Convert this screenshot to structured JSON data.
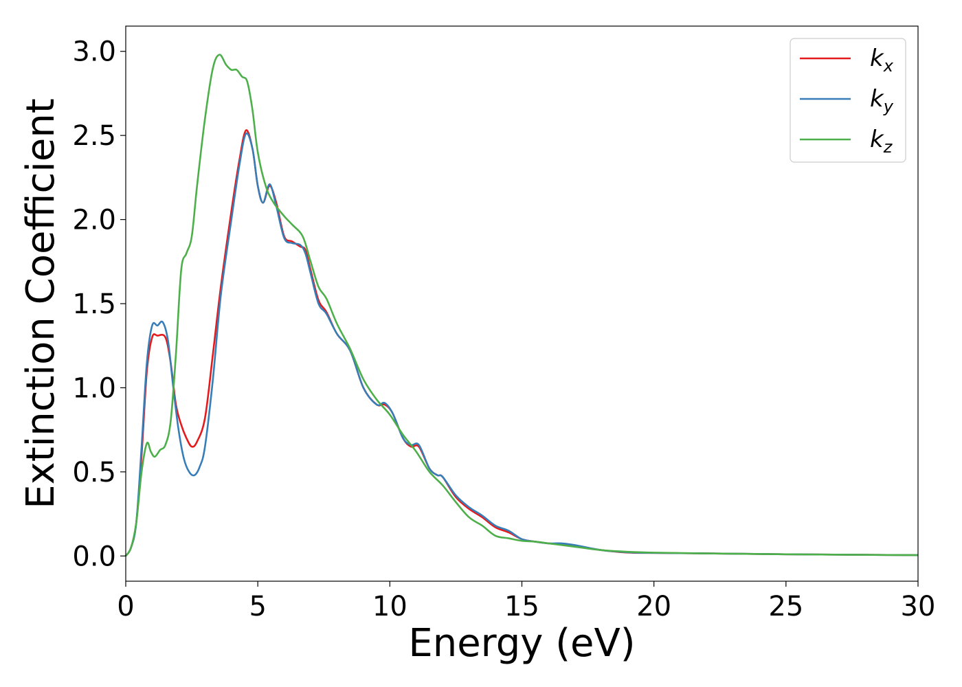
{
  "chart_data": {
    "type": "line",
    "xlabel": "Energy (eV)",
    "ylabel": "Extinction Coefficient",
    "xlim": [
      0,
      30
    ],
    "ylim": [
      -0.15,
      3.15
    ],
    "x_ticks": [
      0,
      5,
      10,
      15,
      20,
      25,
      30
    ],
    "x_tick_labels": [
      "0",
      "5",
      "10",
      "15",
      "20",
      "25",
      "30"
    ],
    "y_ticks": [
      0.0,
      0.5,
      1.0,
      1.5,
      2.0,
      2.5,
      3.0
    ],
    "y_tick_labels": [
      "0.0",
      "0.5",
      "1.0",
      "1.5",
      "2.0",
      "2.5",
      "3.0"
    ],
    "grid": false,
    "legend_position": "top-right",
    "series": [
      {
        "name": "k",
        "subscript": "x",
        "color": "#e41a1c",
        "points": [
          [
            0,
            0
          ],
          [
            0.2,
            0.05
          ],
          [
            0.4,
            0.2
          ],
          [
            0.6,
            0.6
          ],
          [
            0.8,
            1.1
          ],
          [
            1.0,
            1.3
          ],
          [
            1.2,
            1.31
          ],
          [
            1.5,
            1.3
          ],
          [
            1.7,
            1.15
          ],
          [
            1.9,
            0.9
          ],
          [
            2.1,
            0.78
          ],
          [
            2.3,
            0.7
          ],
          [
            2.5,
            0.65
          ],
          [
            2.7,
            0.68
          ],
          [
            3.0,
            0.82
          ],
          [
            3.3,
            1.2
          ],
          [
            3.6,
            1.6
          ],
          [
            4.0,
            2.05
          ],
          [
            4.3,
            2.35
          ],
          [
            4.55,
            2.53
          ],
          [
            4.8,
            2.42
          ],
          [
            5.0,
            2.2
          ],
          [
            5.2,
            2.1
          ],
          [
            5.45,
            2.2
          ],
          [
            5.7,
            2.1
          ],
          [
            6.0,
            1.9
          ],
          [
            6.3,
            1.87
          ],
          [
            6.6,
            1.84
          ],
          [
            6.8,
            1.82
          ],
          [
            7.0,
            1.7
          ],
          [
            7.3,
            1.52
          ],
          [
            7.6,
            1.45
          ],
          [
            8.0,
            1.32
          ],
          [
            8.5,
            1.22
          ],
          [
            9.0,
            1.0
          ],
          [
            9.5,
            0.9
          ],
          [
            9.8,
            0.9
          ],
          [
            10.1,
            0.85
          ],
          [
            10.5,
            0.7
          ],
          [
            10.8,
            0.65
          ],
          [
            11.1,
            0.65
          ],
          [
            11.5,
            0.52
          ],
          [
            11.8,
            0.48
          ],
          [
            12.0,
            0.47
          ],
          [
            12.5,
            0.35
          ],
          [
            13.0,
            0.28
          ],
          [
            13.5,
            0.23
          ],
          [
            14.0,
            0.17
          ],
          [
            14.5,
            0.14
          ],
          [
            15.0,
            0.1
          ],
          [
            15.5,
            0.085
          ],
          [
            16.0,
            0.075
          ],
          [
            16.5,
            0.07
          ],
          [
            17.0,
            0.06
          ],
          [
            18.0,
            0.035
          ],
          [
            19.0,
            0.02
          ],
          [
            20.0,
            0.018
          ],
          [
            22.0,
            0.015
          ],
          [
            25.0,
            0.01
          ],
          [
            30.0,
            0.005
          ]
        ]
      },
      {
        "name": "k",
        "subscript": "y",
        "color": "#377eb8",
        "points": [
          [
            0,
            0
          ],
          [
            0.2,
            0.05
          ],
          [
            0.4,
            0.2
          ],
          [
            0.6,
            0.65
          ],
          [
            0.8,
            1.15
          ],
          [
            1.0,
            1.37
          ],
          [
            1.2,
            1.37
          ],
          [
            1.4,
            1.39
          ],
          [
            1.6,
            1.28
          ],
          [
            1.8,
            1.0
          ],
          [
            2.0,
            0.75
          ],
          [
            2.2,
            0.58
          ],
          [
            2.4,
            0.5
          ],
          [
            2.6,
            0.48
          ],
          [
            2.8,
            0.53
          ],
          [
            3.0,
            0.65
          ],
          [
            3.3,
            1.05
          ],
          [
            3.6,
            1.55
          ],
          [
            4.0,
            2.0
          ],
          [
            4.3,
            2.32
          ],
          [
            4.55,
            2.51
          ],
          [
            4.8,
            2.42
          ],
          [
            5.0,
            2.2
          ],
          [
            5.2,
            2.1
          ],
          [
            5.45,
            2.21
          ],
          [
            5.7,
            2.08
          ],
          [
            6.0,
            1.89
          ],
          [
            6.3,
            1.86
          ],
          [
            6.6,
            1.85
          ],
          [
            6.8,
            1.8
          ],
          [
            7.0,
            1.68
          ],
          [
            7.3,
            1.5
          ],
          [
            7.6,
            1.44
          ],
          [
            8.0,
            1.32
          ],
          [
            8.5,
            1.22
          ],
          [
            9.0,
            1.0
          ],
          [
            9.5,
            0.9
          ],
          [
            9.8,
            0.91
          ],
          [
            10.1,
            0.85
          ],
          [
            10.5,
            0.7
          ],
          [
            10.8,
            0.66
          ],
          [
            11.1,
            0.66
          ],
          [
            11.5,
            0.52
          ],
          [
            11.8,
            0.48
          ],
          [
            12.0,
            0.47
          ],
          [
            12.5,
            0.36
          ],
          [
            13.0,
            0.29
          ],
          [
            13.5,
            0.24
          ],
          [
            14.0,
            0.18
          ],
          [
            14.5,
            0.15
          ],
          [
            15.0,
            0.1
          ],
          [
            15.5,
            0.085
          ],
          [
            16.0,
            0.075
          ],
          [
            16.5,
            0.075
          ],
          [
            17.0,
            0.065
          ],
          [
            18.0,
            0.035
          ],
          [
            19.0,
            0.022
          ],
          [
            20.0,
            0.018
          ],
          [
            22.0,
            0.015
          ],
          [
            25.0,
            0.01
          ],
          [
            30.0,
            0.005
          ]
        ]
      },
      {
        "name": "k",
        "subscript": "z",
        "color": "#4daf4a",
        "points": [
          [
            0,
            0
          ],
          [
            0.2,
            0.05
          ],
          [
            0.4,
            0.2
          ],
          [
            0.6,
            0.5
          ],
          [
            0.8,
            0.67
          ],
          [
            0.95,
            0.62
          ],
          [
            1.1,
            0.59
          ],
          [
            1.3,
            0.63
          ],
          [
            1.5,
            0.66
          ],
          [
            1.7,
            0.8
          ],
          [
            1.9,
            1.2
          ],
          [
            2.1,
            1.7
          ],
          [
            2.3,
            1.8
          ],
          [
            2.5,
            1.9
          ],
          [
            2.7,
            2.2
          ],
          [
            3.0,
            2.6
          ],
          [
            3.3,
            2.9
          ],
          [
            3.55,
            2.98
          ],
          [
            3.8,
            2.92
          ],
          [
            4.0,
            2.89
          ],
          [
            4.2,
            2.89
          ],
          [
            4.4,
            2.85
          ],
          [
            4.6,
            2.82
          ],
          [
            4.8,
            2.65
          ],
          [
            5.0,
            2.4
          ],
          [
            5.3,
            2.2
          ],
          [
            5.6,
            2.1
          ],
          [
            6.0,
            2.02
          ],
          [
            6.3,
            1.97
          ],
          [
            6.7,
            1.9
          ],
          [
            7.0,
            1.75
          ],
          [
            7.3,
            1.6
          ],
          [
            7.6,
            1.53
          ],
          [
            8.0,
            1.38
          ],
          [
            8.5,
            1.23
          ],
          [
            9.0,
            1.05
          ],
          [
            9.5,
            0.93
          ],
          [
            10.0,
            0.84
          ],
          [
            10.5,
            0.72
          ],
          [
            11.0,
            0.62
          ],
          [
            11.5,
            0.5
          ],
          [
            12.0,
            0.42
          ],
          [
            12.5,
            0.32
          ],
          [
            13.0,
            0.23
          ],
          [
            13.5,
            0.18
          ],
          [
            14.0,
            0.12
          ],
          [
            14.5,
            0.105
          ],
          [
            15.0,
            0.09
          ],
          [
            15.5,
            0.085
          ],
          [
            16.0,
            0.075
          ],
          [
            16.5,
            0.065
          ],
          [
            17.0,
            0.055
          ],
          [
            18.0,
            0.035
          ],
          [
            19.0,
            0.025
          ],
          [
            20.0,
            0.02
          ],
          [
            22.0,
            0.015
          ],
          [
            25.0,
            0.01
          ],
          [
            30.0,
            0.005
          ]
        ]
      }
    ]
  }
}
